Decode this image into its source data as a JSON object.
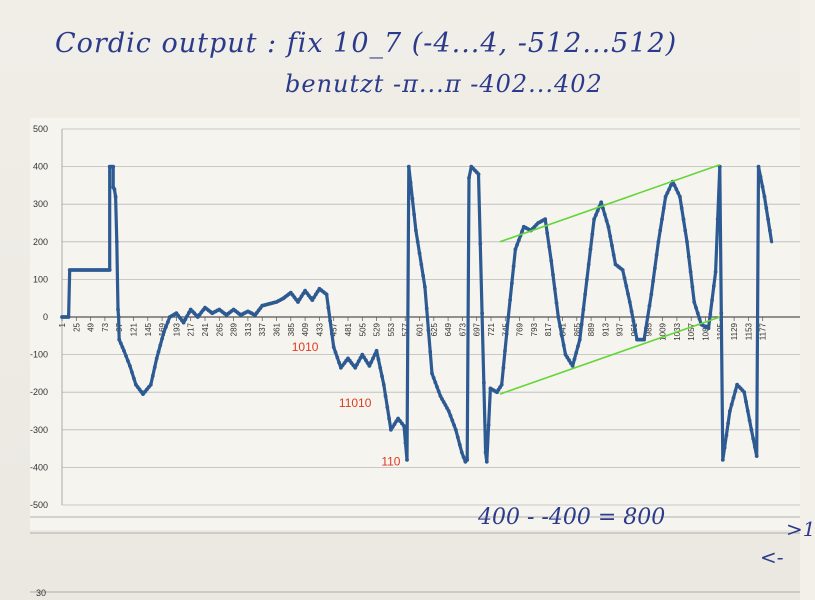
{
  "notes": {
    "title": "Cordic output : fix 10_7  (-4...4,  -512...512)",
    "subtitle": "benutzt  -π...π     -402...402",
    "calc": "400 - -400 = 800",
    "edge1": ">1",
    "edge2": "<-"
  },
  "chart_data": {
    "type": "line",
    "title": "",
    "xlabel": "",
    "ylabel": "",
    "ylim": [
      -500,
      500
    ],
    "yticks": [
      500,
      400,
      300,
      200,
      100,
      0,
      -100,
      -200,
      -300,
      -400,
      -500
    ],
    "x_tick_labels": [
      "1",
      "25",
      "49",
      "73",
      "97",
      "121",
      "145",
      "169",
      "193",
      "217",
      "241",
      "265",
      "289",
      "313",
      "337",
      "361",
      "385",
      "409",
      "433",
      "457",
      "481",
      "505",
      "529",
      "553",
      "577",
      "601",
      "625",
      "649",
      "673",
      "697",
      "721",
      "745",
      "769",
      "793",
      "817",
      "841",
      "865",
      "889",
      "913",
      "937",
      "961",
      "985",
      "1009",
      "1033",
      "1057",
      "1081",
      "1105",
      "1129",
      "1153",
      "1177"
    ],
    "series": [
      {
        "name": "",
        "color": "#2d5a92",
        "points": [
          [
            1,
            0
          ],
          [
            12,
            0
          ],
          [
            14,
            125
          ],
          [
            30,
            125
          ],
          [
            50,
            125
          ],
          [
            70,
            125
          ],
          [
            81,
            125
          ],
          [
            81,
            400
          ],
          [
            87,
            400
          ],
          [
            87,
            345
          ],
          [
            89,
            340
          ],
          [
            91,
            320
          ],
          [
            93,
            200
          ],
          [
            95,
            20
          ],
          [
            96,
            0
          ],
          [
            97,
            -60
          ],
          [
            105,
            -90
          ],
          [
            115,
            -130
          ],
          [
            125,
            -180
          ],
          [
            137,
            -205
          ],
          [
            150,
            -180
          ],
          [
            160,
            -110
          ],
          [
            172,
            -40
          ],
          [
            182,
            0
          ],
          [
            193,
            10
          ],
          [
            205,
            -15
          ],
          [
            217,
            20
          ],
          [
            229,
            0
          ],
          [
            241,
            25
          ],
          [
            253,
            10
          ],
          [
            265,
            20
          ],
          [
            277,
            5
          ],
          [
            289,
            20
          ],
          [
            301,
            5
          ],
          [
            313,
            15
          ],
          [
            325,
            5
          ],
          [
            337,
            30
          ],
          [
            349,
            35
          ],
          [
            361,
            40
          ],
          [
            373,
            50
          ],
          [
            385,
            65
          ],
          [
            397,
            40
          ],
          [
            409,
            70
          ],
          [
            421,
            45
          ],
          [
            433,
            75
          ],
          [
            445,
            60
          ],
          [
            457,
            -80
          ],
          [
            469,
            -135
          ],
          [
            481,
            -110
          ],
          [
            493,
            -135
          ],
          [
            505,
            -100
          ],
          [
            517,
            -130
          ],
          [
            529,
            -90
          ],
          [
            541,
            -180
          ],
          [
            553,
            -300
          ],
          [
            565,
            -270
          ],
          [
            575,
            -290
          ],
          [
            580,
            -380
          ],
          [
            583,
            400
          ],
          [
            595,
            230
          ],
          [
            610,
            80
          ],
          [
            622,
            -150
          ],
          [
            636,
            -210
          ],
          [
            650,
            -250
          ],
          [
            662,
            -300
          ],
          [
            672,
            -360
          ],
          [
            678,
            -385
          ],
          [
            681,
            -380
          ],
          [
            684,
            370
          ],
          [
            688,
            400
          ],
          [
            700,
            380
          ],
          [
            712,
            -360
          ],
          [
            714,
            -385
          ],
          [
            720,
            -190
          ],
          [
            731,
            -200
          ],
          [
            739,
            -180
          ],
          [
            750,
            0
          ],
          [
            762,
            180
          ],
          [
            776,
            240
          ],
          [
            788,
            230
          ],
          [
            800,
            250
          ],
          [
            812,
            260
          ],
          [
            822,
            150
          ],
          [
            834,
            0
          ],
          [
            846,
            -100
          ],
          [
            858,
            -130
          ],
          [
            870,
            -60
          ],
          [
            882,
            100
          ],
          [
            894,
            260
          ],
          [
            906,
            305
          ],
          [
            918,
            240
          ],
          [
            930,
            140
          ],
          [
            942,
            125
          ],
          [
            954,
            40
          ],
          [
            966,
            -60
          ],
          [
            978,
            -60
          ],
          [
            990,
            60
          ],
          [
            1002,
            200
          ],
          [
            1014,
            320
          ],
          [
            1026,
            360
          ],
          [
            1038,
            320
          ],
          [
            1050,
            200
          ],
          [
            1062,
            40
          ],
          [
            1074,
            -20
          ],
          [
            1086,
            -30
          ],
          [
            1098,
            120
          ],
          [
            1105,
            400
          ],
          [
            1110,
            -380
          ],
          [
            1122,
            -250
          ],
          [
            1134,
            -180
          ],
          [
            1146,
            -200
          ],
          [
            1158,
            -300
          ],
          [
            1167,
            -370
          ],
          [
            1170,
            400
          ],
          [
            1180,
            320
          ],
          [
            1192,
            200
          ]
        ]
      }
    ],
    "trend_lines": [
      {
        "color": "#63d63a",
        "points": [
          [
            736,
            200
          ],
          [
            1105,
            405
          ]
        ]
      },
      {
        "color": "#63d63a",
        "points": [
          [
            736,
            -205
          ],
          [
            1105,
            0
          ]
        ]
      }
    ],
    "annotations": [
      {
        "label": "1010",
        "color": "#e03a1e",
        "x": 409,
        "y": -90
      },
      {
        "label": "11010",
        "color": "#e03a1e",
        "x": 493,
        "y": -240
      },
      {
        "label": "110",
        "color": "#e03a1e",
        "x": 553,
        "y": -395
      }
    ]
  },
  "lower_chart": {
    "ytick": "30"
  }
}
